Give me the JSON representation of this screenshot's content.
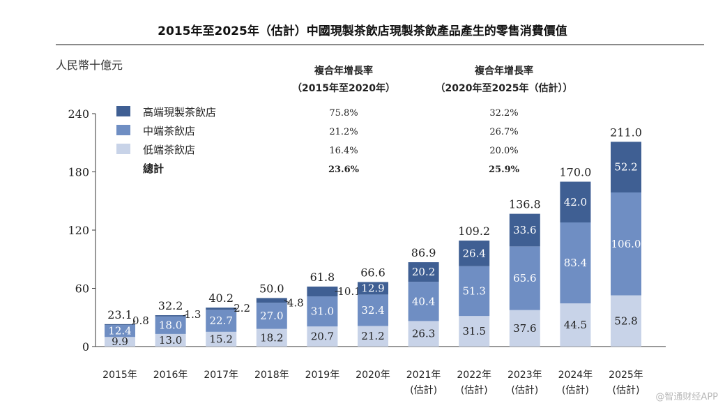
{
  "title": "2015年至2025年（估計）中國現製茶飲店現製茶飲產品產生的零售消費價值",
  "watermark": "@智通财经APP",
  "chart_data": {
    "type": "bar",
    "stacked": true,
    "ylabel": "人民幣十億元",
    "ylim": [
      0,
      240
    ],
    "yticks": [
      "0",
      "60",
      "120",
      "180",
      "240"
    ],
    "categories": [
      [
        "2015年"
      ],
      [
        "2016年"
      ],
      [
        "2017年"
      ],
      [
        "2018年"
      ],
      [
        "2019年"
      ],
      [
        "2020年"
      ],
      [
        "2021年",
        "(估計)"
      ],
      [
        "2022年",
        "(估計)"
      ],
      [
        "2023年",
        "(估計)"
      ],
      [
        "2024年",
        "(估計)"
      ],
      [
        "2025年",
        "(估計)"
      ]
    ],
    "series": [
      {
        "name": "低端茶飲店",
        "color": "#c8d3e8",
        "label_color": "#222222",
        "values": [
          9.9,
          13.0,
          15.2,
          18.2,
          20.7,
          21.2,
          26.3,
          31.5,
          37.6,
          44.5,
          52.8
        ],
        "labels": [
          "9.9",
          "13.0",
          "15.2",
          "18.2",
          "20.7",
          "21.2",
          "26.3",
          "31.5",
          "37.6",
          "44.5",
          "52.8"
        ]
      },
      {
        "name": "中端茶飲店",
        "color": "#6f8ec3",
        "label_color": "#ffffff",
        "values": [
          12.4,
          18.0,
          22.7,
          27.0,
          31.0,
          32.4,
          40.4,
          51.3,
          65.6,
          83.4,
          106.0
        ],
        "labels": [
          "12.4",
          "18.0",
          "22.7",
          "27.0",
          "31.0",
          "32.4",
          "40.4",
          "51.3",
          "65.6",
          "83.4",
          "106.0"
        ]
      },
      {
        "name": "高端現製茶飲店",
        "color": "#3f5f93",
        "label_color": "#ffffff",
        "values": [
          0.8,
          1.3,
          2.2,
          4.8,
          10.1,
          12.9,
          20.2,
          26.4,
          33.6,
          42.0,
          52.2
        ],
        "labels": [
          "0.8",
          "1.3",
          "2.2",
          "4.8",
          "10.1",
          "12.9",
          "20.2",
          "26.4",
          "33.6",
          "42.0",
          "52.2"
        ]
      }
    ],
    "totals": [
      23.1,
      32.2,
      40.2,
      50.0,
      61.8,
      66.6,
      86.9,
      109.2,
      136.8,
      170.0,
      211.0
    ],
    "total_labels": [
      "23.1",
      "32.2",
      "40.2",
      "50.0",
      "61.8",
      "66.6",
      "86.9",
      "109.2",
      "136.8",
      "170.0",
      "211.0"
    ],
    "legend": [
      "高端現製茶飲店",
      "中端茶飲店",
      "低端茶飲店",
      "總計"
    ],
    "cagr": {
      "headers": [
        [
          "複合年增長率",
          "（2015年至2020年）"
        ],
        [
          "複合年增長率",
          "（2020年至2025年（估計））"
        ]
      ],
      "period1": [
        "75.8%",
        "21.2%",
        "16.4%",
        "23.6%"
      ],
      "period2": [
        "32.2%",
        "26.7%",
        "20.0%",
        "25.9%"
      ]
    }
  }
}
